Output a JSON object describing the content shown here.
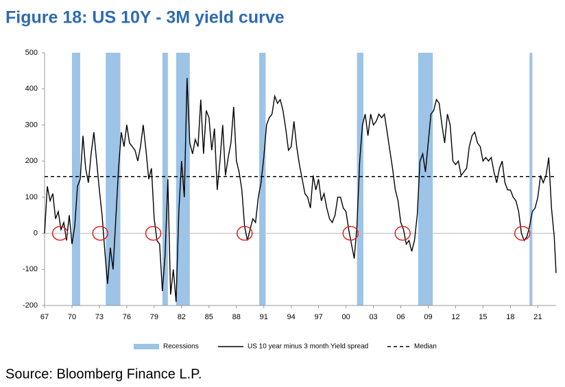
{
  "chart_data": {
    "type": "line",
    "title": "Figure 18: US 10Y - 3M yield curve",
    "source": "Source: Bloomberg Finance L.P.",
    "xlim": [
      1967,
      2023
    ],
    "xticks": [
      {
        "value": 1967,
        "label": "67"
      },
      {
        "value": 1970,
        "label": "70"
      },
      {
        "value": 1973,
        "label": "73"
      },
      {
        "value": 1976,
        "label": "76"
      },
      {
        "value": 1979,
        "label": "79"
      },
      {
        "value": 1982,
        "label": "82"
      },
      {
        "value": 1985,
        "label": "85"
      },
      {
        "value": 1988,
        "label": "88"
      },
      {
        "value": 1991,
        "label": "91"
      },
      {
        "value": 1994,
        "label": "94"
      },
      {
        "value": 1997,
        "label": "97"
      },
      {
        "value": 2000,
        "label": "00"
      },
      {
        "value": 2003,
        "label": "03"
      },
      {
        "value": 2006,
        "label": "06"
      },
      {
        "value": 2009,
        "label": "09"
      },
      {
        "value": 2012,
        "label": "12"
      },
      {
        "value": 2015,
        "label": "15"
      },
      {
        "value": 2018,
        "label": "18"
      },
      {
        "value": 2021,
        "label": "21"
      }
    ],
    "ylim": [
      -200,
      500
    ],
    "yticks": [
      500,
      400,
      300,
      200,
      100,
      0,
      -100,
      -200
    ],
    "recessions": {
      "name": "Recessions",
      "color": "#9dc3e6",
      "periods": [
        [
          1970.0,
          1970.9
        ],
        [
          1973.7,
          1975.3
        ],
        [
          1979.9,
          1980.5
        ],
        [
          1981.4,
          1982.9
        ],
        [
          1990.5,
          1991.2
        ],
        [
          2001.2,
          2001.9
        ],
        [
          2007.9,
          2009.5
        ],
        [
          2020.1,
          2020.4
        ]
      ]
    },
    "median": {
      "name": "Median",
      "value": 157,
      "color": "#000000"
    },
    "inversion_marks": {
      "color": "#e0201b",
      "x": [
        1968.7,
        1973.1,
        1978.9,
        1988.9,
        2000.5,
        2006.2,
        2019.3
      ],
      "y": [
        0,
        0,
        0,
        0,
        0,
        0,
        0
      ]
    },
    "x": [
      1967.0,
      1967.3,
      1967.6,
      1967.9,
      1968.2,
      1968.5,
      1968.8,
      1969.1,
      1969.4,
      1969.7,
      1970.0,
      1970.3,
      1970.6,
      1970.9,
      1971.2,
      1971.5,
      1971.8,
      1972.1,
      1972.4,
      1972.7,
      1973.0,
      1973.3,
      1973.6,
      1973.9,
      1974.2,
      1974.5,
      1974.8,
      1975.1,
      1975.4,
      1975.7,
      1976.0,
      1976.3,
      1976.6,
      1976.9,
      1977.2,
      1977.5,
      1977.8,
      1978.1,
      1978.4,
      1978.7,
      1979.0,
      1979.3,
      1979.6,
      1979.9,
      1980.2,
      1980.5,
      1980.8,
      1981.1,
      1981.4,
      1981.7,
      1982.0,
      1982.3,
      1982.6,
      1982.9,
      1983.2,
      1983.5,
      1983.8,
      1984.1,
      1984.4,
      1984.7,
      1985.0,
      1985.3,
      1985.6,
      1985.9,
      1986.2,
      1986.5,
      1986.8,
      1987.1,
      1987.4,
      1987.7,
      1988.0,
      1988.3,
      1988.6,
      1988.9,
      1989.2,
      1989.5,
      1989.8,
      1990.1,
      1990.4,
      1990.7,
      1991.0,
      1991.3,
      1991.6,
      1991.9,
      1992.2,
      1992.5,
      1992.8,
      1993.1,
      1993.4,
      1993.7,
      1994.0,
      1994.3,
      1994.6,
      1994.9,
      1995.2,
      1995.5,
      1995.8,
      1996.1,
      1996.4,
      1996.7,
      1997.0,
      1997.3,
      1997.6,
      1997.9,
      1998.2,
      1998.5,
      1998.8,
      1999.1,
      1999.4,
      1999.7,
      2000.0,
      2000.3,
      2000.6,
      2000.9,
      2001.2,
      2001.5,
      2001.8,
      2002.1,
      2002.4,
      2002.7,
      2003.0,
      2003.3,
      2003.6,
      2003.9,
      2004.2,
      2004.5,
      2004.8,
      2005.1,
      2005.4,
      2005.7,
      2006.0,
      2006.3,
      2006.6,
      2006.9,
      2007.2,
      2007.5,
      2007.8,
      2008.1,
      2008.4,
      2008.7,
      2009.0,
      2009.3,
      2009.6,
      2009.9,
      2010.2,
      2010.5,
      2010.8,
      2011.1,
      2011.4,
      2011.7,
      2012.0,
      2012.3,
      2012.6,
      2012.9,
      2013.2,
      2013.5,
      2013.8,
      2014.1,
      2014.4,
      2014.7,
      2015.0,
      2015.3,
      2015.6,
      2015.9,
      2016.2,
      2016.5,
      2016.8,
      2017.1,
      2017.4,
      2017.7,
      2018.0,
      2018.3,
      2018.6,
      2018.9,
      2019.2,
      2019.5,
      2019.8,
      2020.1,
      2020.4,
      2020.7,
      2021.0,
      2021.3,
      2021.6,
      2021.9,
      2022.2,
      2022.5,
      2022.8,
      2023.0
    ],
    "series": [
      {
        "name": "US 10 year minus 3 month Yield spread",
        "color": "#000000",
        "values": [
          0,
          130,
          90,
          110,
          40,
          60,
          10,
          30,
          -20,
          50,
          -30,
          20,
          130,
          150,
          270,
          180,
          140,
          220,
          280,
          200,
          120,
          50,
          -50,
          -140,
          -40,
          -100,
          40,
          180,
          280,
          240,
          300,
          250,
          240,
          230,
          200,
          240,
          300,
          230,
          150,
          180,
          40,
          -20,
          -30,
          -160,
          -60,
          150,
          -170,
          -100,
          -190,
          60,
          200,
          100,
          430,
          250,
          220,
          260,
          240,
          370,
          220,
          340,
          320,
          230,
          290,
          120,
          200,
          300,
          160,
          210,
          250,
          350,
          200,
          170,
          120,
          20,
          -20,
          10,
          40,
          30,
          100,
          140,
          210,
          300,
          320,
          330,
          380,
          360,
          370,
          340,
          290,
          230,
          240,
          310,
          240,
          190,
          150,
          110,
          100,
          70,
          160,
          120,
          150,
          90,
          110,
          70,
          40,
          30,
          50,
          100,
          100,
          70,
          60,
          10,
          -30,
          -70,
          20,
          200,
          300,
          330,
          270,
          330,
          300,
          310,
          330,
          320,
          330,
          280,
          230,
          180,
          120,
          90,
          30,
          10,
          -30,
          -20,
          -50,
          -20,
          50,
          200,
          220,
          170,
          250,
          330,
          340,
          370,
          360,
          300,
          250,
          330,
          300,
          200,
          190,
          200,
          160,
          170,
          180,
          240,
          270,
          280,
          250,
          240,
          200,
          210,
          200,
          210,
          170,
          140,
          180,
          200,
          140,
          120,
          120,
          100,
          90,
          60,
          0,
          -20,
          -10,
          20,
          60,
          70,
          100,
          160,
          140,
          160,
          210,
          70,
          -10,
          -110
        ]
      }
    ]
  }
}
